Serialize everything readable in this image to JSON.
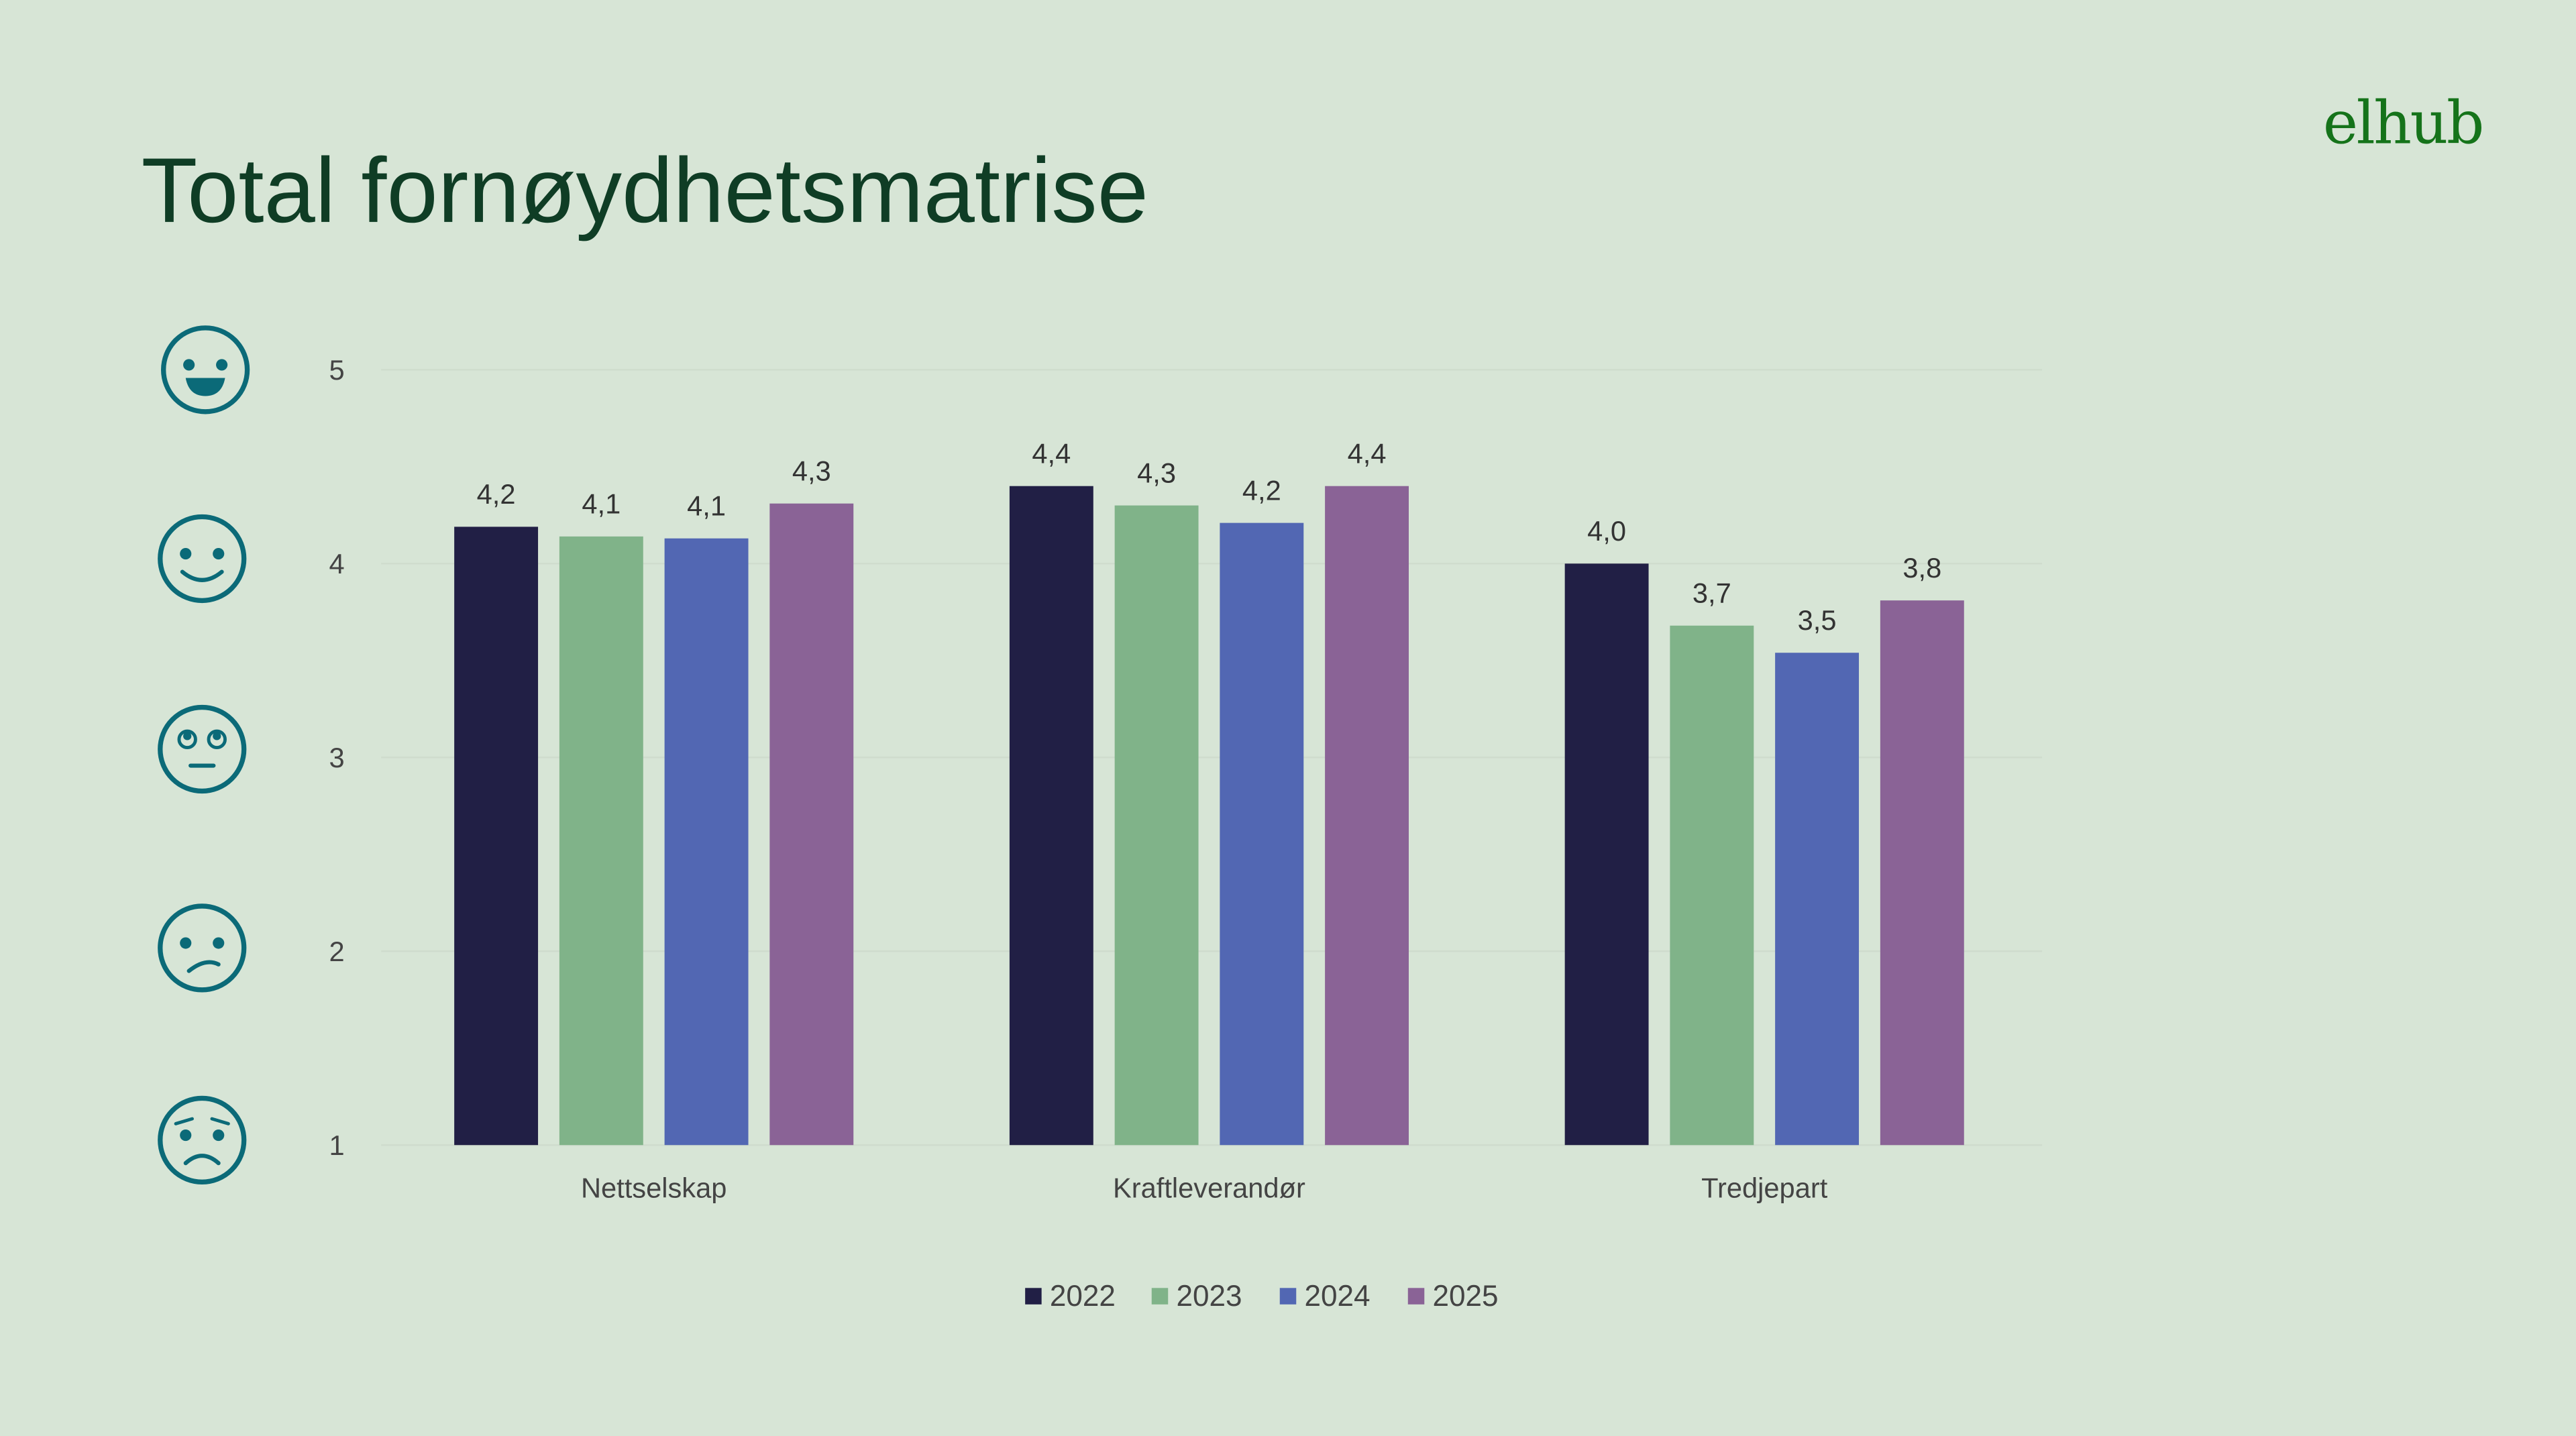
{
  "title": "Total fornøydhetsmatrise",
  "logo": "elhub",
  "rating_icons": [
    "very-happy-face-icon",
    "smiling-face-icon",
    "neutral-eyeroll-face-icon",
    "confused-face-icon",
    "worried-face-icon"
  ],
  "icon_color": "#0b6a78",
  "chart_data": {
    "type": "bar",
    "title": "",
    "xlabel": "",
    "ylabel": "",
    "ylim": [
      1,
      5
    ],
    "yticks": [
      "1",
      "2",
      "3",
      "4",
      "5"
    ],
    "grid": true,
    "legend_position": "bottom",
    "categories": [
      "Nettselskap",
      "Kraftleverandør",
      "Tredjepart"
    ],
    "series": [
      {
        "name": "2022",
        "color": "#211f45",
        "values": [
          4.19,
          4.4,
          4.0
        ],
        "labels": [
          "4,2",
          "4,4",
          "4,0"
        ]
      },
      {
        "name": "2023",
        "color": "#80b389",
        "values": [
          4.14,
          4.3,
          3.68
        ],
        "labels": [
          "4,1",
          "4,3",
          "3,7"
        ]
      },
      {
        "name": "2024",
        "color": "#5267b3",
        "values": [
          4.13,
          4.21,
          3.54
        ],
        "labels": [
          "4,1",
          "4,2",
          "3,5"
        ]
      },
      {
        "name": "2025",
        "color": "#8a6396",
        "values": [
          4.31,
          4.4,
          3.81
        ],
        "labels": [
          "4,3",
          "4,4",
          "3,8"
        ]
      }
    ]
  }
}
